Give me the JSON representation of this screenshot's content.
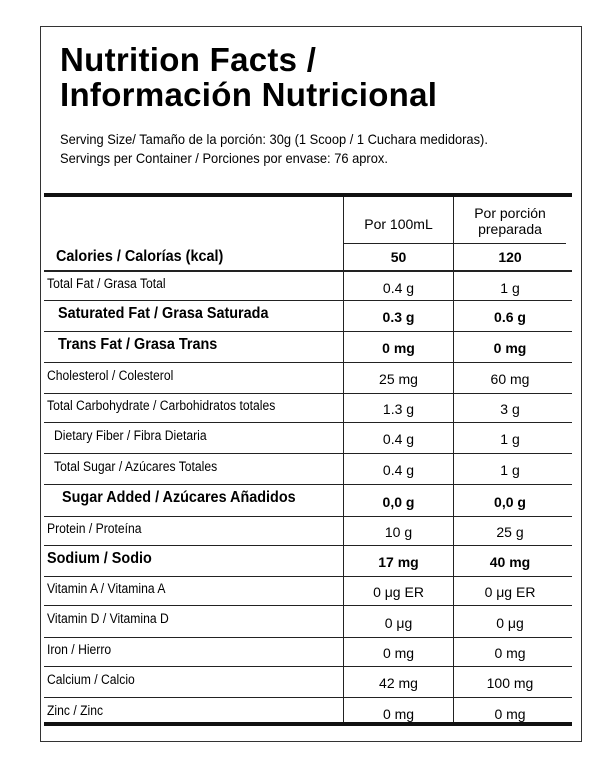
{
  "title": {
    "line1": "Nutrition Facts /",
    "line2": "Información Nutricional"
  },
  "serving": {
    "size": "Serving Size/ Tamaño de la porción: 30g  (1 Scoop / 1 Cuchara medidoras).",
    "servings": "Servings per Container / Porciones por envase: 76 aprox."
  },
  "columns": {
    "per_100": "Por 100mL",
    "per_serving_line1": "Por porción",
    "per_serving_line2": "preparada"
  },
  "calories": {
    "name": "Calories / Calorías (kcal)",
    "per_100": "50",
    "per_serving": "120"
  },
  "rows": [
    {
      "name": "Total Fat / Grasa Total",
      "per_100": "0.4 g",
      "per_serving": "1 g"
    },
    {
      "name": "Saturated Fat / Grasa Saturada",
      "per_100": "0.3 g",
      "per_serving": "0.6 g"
    },
    {
      "name": "Trans Fat / Grasa Trans",
      "per_100": "0 mg",
      "per_serving": "0 mg"
    },
    {
      "name": "Cholesterol / Colesterol",
      "per_100": "25 mg",
      "per_serving": "60 mg"
    },
    {
      "name": "Total Carbohydrate / Carbohidratos totales",
      "per_100": "1.3 g",
      "per_serving": "3 g"
    },
    {
      "name": "Dietary Fiber / Fibra Dietaria",
      "per_100": "0.4 g",
      "per_serving": "1 g"
    },
    {
      "name": "Total Sugar / Azúcares Totales",
      "per_100": "0.4 g",
      "per_serving": "1 g"
    },
    {
      "name": "Sugar Added / Azúcares Añadidos",
      "per_100": "0,0 g",
      "per_serving": "0,0 g"
    },
    {
      "name": "Protein / Proteína",
      "per_100": "10 g",
      "per_serving": "25 g"
    },
    {
      "name": "Sodium / Sodio",
      "per_100": "17 mg",
      "per_serving": "40 mg"
    },
    {
      "name": "Vitamin A / Vitamina A",
      "per_100": "0 μg ER",
      "per_serving": "0 μg ER"
    },
    {
      "name": "Vitamin D / Vitamina D",
      "per_100": "0 μg",
      "per_serving": "0 μg"
    },
    {
      "name": "Iron / Hierro",
      "per_100": "0 mg",
      "per_serving": "0 mg"
    },
    {
      "name": "Calcium / Calcio",
      "per_100": "42 mg",
      "per_serving": "100 mg"
    },
    {
      "name": "Zinc / Zinc",
      "per_100": "0 mg",
      "per_serving": "0 mg"
    }
  ]
}
